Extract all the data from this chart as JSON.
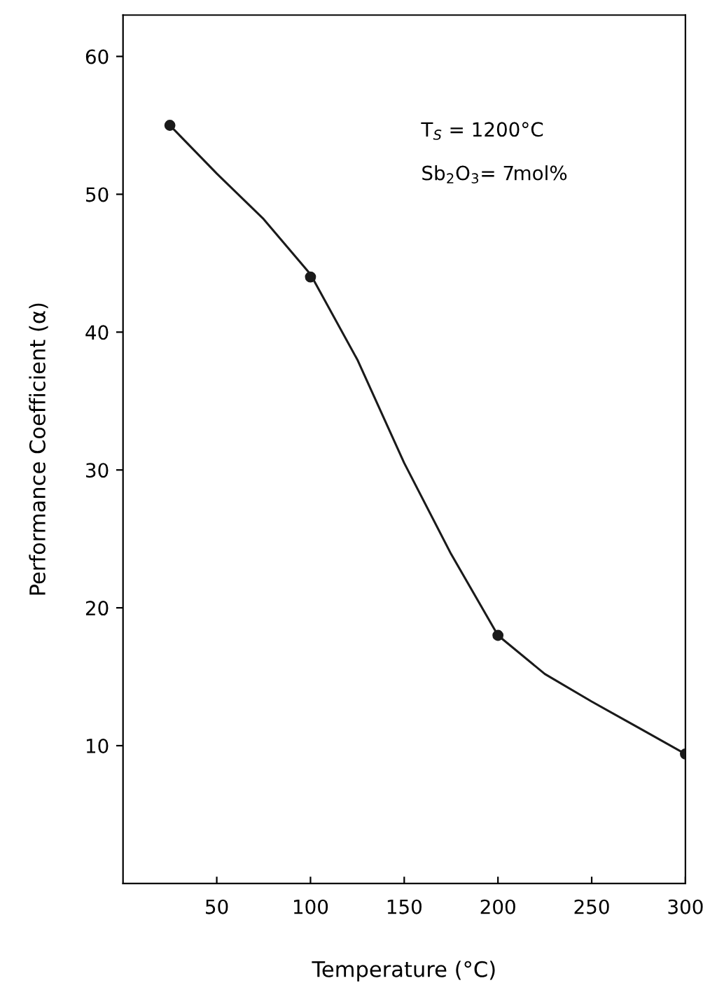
{
  "chart_data": {
    "type": "line",
    "xlabel": "Temperature (°C)",
    "ylabel": "Performance Coefficient (α)",
    "legend": false,
    "series": [
      {
        "marker": "none",
        "color": "#1a1a1a",
        "x": [
          25,
          50,
          75,
          100,
          125,
          150,
          175,
          200,
          225,
          250,
          275,
          300
        ],
        "values": [
          55,
          51.5,
          48.2,
          44.2,
          38,
          30.5,
          23.9,
          18,
          15.2,
          13.2,
          11.3,
          9.4
        ]
      },
      {
        "type": "scatter",
        "marker": "circle",
        "color": "#1a1a1a",
        "x": [
          25,
          100,
          200,
          300
        ],
        "values": [
          55,
          44,
          18,
          9.4
        ]
      }
    ],
    "line_style": "solid",
    "grid": false,
    "xlim": [
      0,
      300
    ],
    "xticks": [
      50,
      100,
      150,
      200,
      250,
      300
    ],
    "ylim": [
      0,
      63
    ],
    "yticks": [
      10,
      20,
      30,
      40,
      50,
      60
    ],
    "annotations": [
      "T$_{S}$ = 1200°C",
      "Sb$_{2}$O$_{3}$= 7mol%"
    ]
  }
}
